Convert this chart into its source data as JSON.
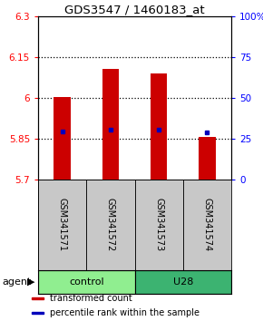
{
  "title": "GDS3547 / 1460183_at",
  "samples": [
    "GSM341571",
    "GSM341572",
    "GSM341573",
    "GSM341574"
  ],
  "bar_values": [
    6.005,
    6.105,
    6.09,
    5.855
  ],
  "percentile_values": [
    5.876,
    5.882,
    5.883,
    5.873
  ],
  "bar_bottom": 5.7,
  "ylim_left": [
    5.7,
    6.3
  ],
  "ylim_right": [
    0,
    100
  ],
  "yticks_left": [
    5.7,
    5.85,
    6.0,
    6.15,
    6.3
  ],
  "yticks_left_labels": [
    "5.7",
    "5.85",
    "6",
    "6.15",
    "6.3"
  ],
  "yticks_right": [
    0,
    25,
    50,
    75,
    100
  ],
  "yticks_right_labels": [
    "0",
    "25",
    "50",
    "75",
    "100%"
  ],
  "gridlines": [
    5.85,
    6.0,
    6.15
  ],
  "groups": [
    {
      "label": "control",
      "samples": [
        0,
        1
      ],
      "color": "#90EE90"
    },
    {
      "label": "U28",
      "samples": [
        2,
        3
      ],
      "color": "#3CB371"
    }
  ],
  "group_row_label": "agent",
  "bar_color": "#CC0000",
  "percentile_color": "#0000BB",
  "bar_width": 0.35,
  "sample_box_color": "#C8C8C8",
  "legend_items": [
    {
      "color": "#CC0000",
      "label": "transformed count"
    },
    {
      "color": "#0000BB",
      "label": "percentile rank within the sample"
    }
  ]
}
